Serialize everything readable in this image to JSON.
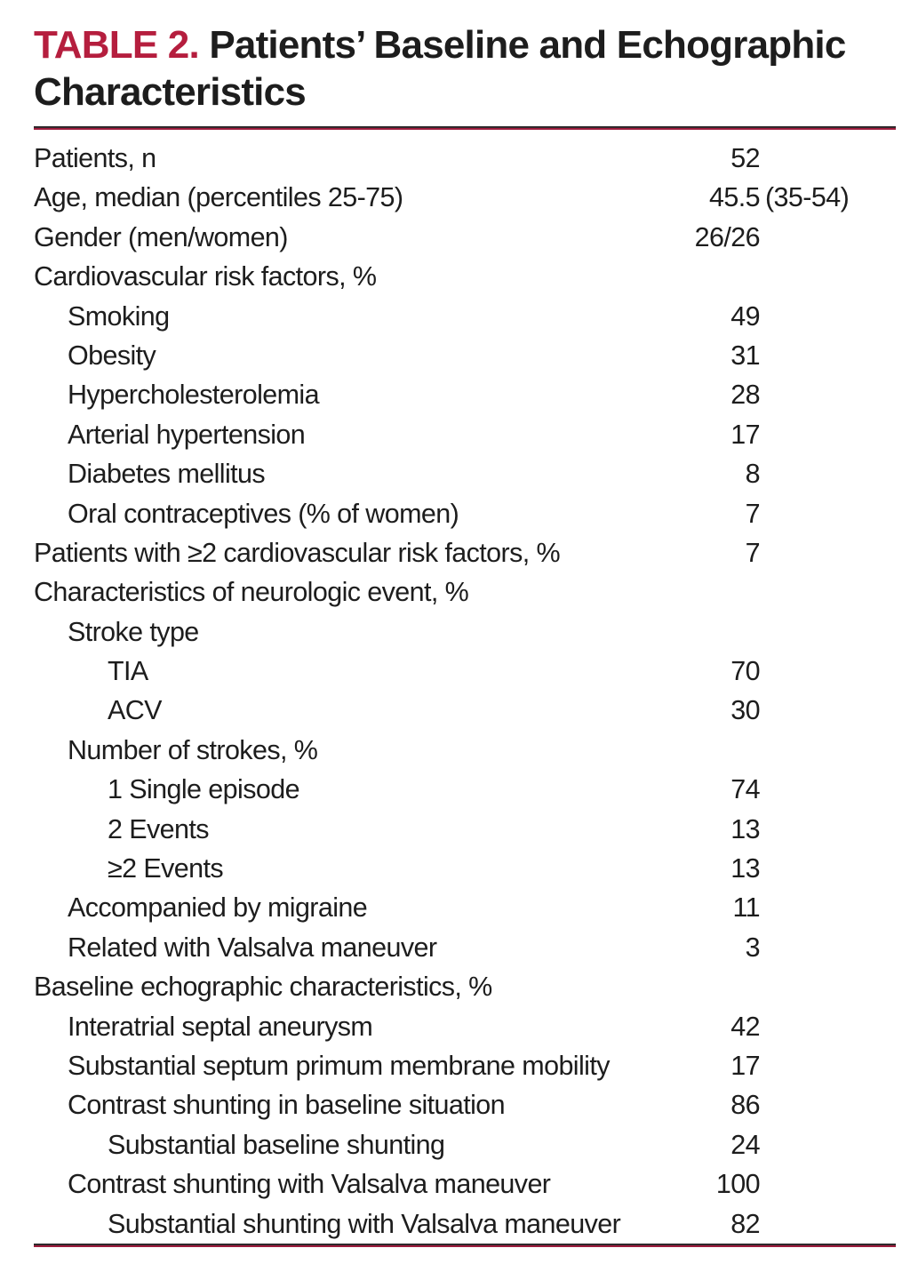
{
  "title": {
    "label": "TABLE 2.",
    "line1": "Patients’ Baseline and Echographic",
    "line2": "Characteristics"
  },
  "colors": {
    "accent": "#b51e3e",
    "rule_dark": "#2e2a2c",
    "rule_red": "#9c1c3c",
    "text": "#1d1d1d"
  },
  "table": {
    "rows": [
      {
        "label": "Patients, n",
        "value": "52",
        "suffix": "",
        "indent": 0
      },
      {
        "label": "Age, median (percentiles 25-75)",
        "value": "45.5",
        "suffix": "(35-54)",
        "indent": 0
      },
      {
        "label": "Gender (men/women)",
        "value": "26/26",
        "suffix": "",
        "indent": 0
      },
      {
        "label": "Cardiovascular risk factors, %",
        "value": "",
        "suffix": "",
        "indent": 0
      },
      {
        "label": "Smoking",
        "value": "49",
        "suffix": "",
        "indent": 1
      },
      {
        "label": "Obesity",
        "value": "31",
        "suffix": "",
        "indent": 1
      },
      {
        "label": "Hypercholesterolemia",
        "value": "28",
        "suffix": "",
        "indent": 1
      },
      {
        "label": "Arterial hypertension",
        "value": "17",
        "suffix": "",
        "indent": 1
      },
      {
        "label": "Diabetes mellitus",
        "value": "8",
        "suffix": "",
        "indent": 1
      },
      {
        "label": "Oral contraceptives (% of women)",
        "value": "7",
        "suffix": "",
        "indent": 1
      },
      {
        "label": "Patients with ≥2 cardiovascular risk factors, %",
        "value": "7",
        "suffix": "",
        "indent": 0
      },
      {
        "label": "Characteristics of neurologic event, %",
        "value": "",
        "suffix": "",
        "indent": 0
      },
      {
        "label": "Stroke type",
        "value": "",
        "suffix": "",
        "indent": 1
      },
      {
        "label": "TIA",
        "value": "70",
        "suffix": "",
        "indent": 2
      },
      {
        "label": "ACV",
        "value": "30",
        "suffix": "",
        "indent": 2
      },
      {
        "label": "Number of strokes, %",
        "value": "",
        "suffix": "",
        "indent": 1
      },
      {
        "label": "1 Single episode",
        "value": "74",
        "suffix": "",
        "indent": 2
      },
      {
        "label": "2 Events",
        "value": "13",
        "suffix": "",
        "indent": 2
      },
      {
        "label": "≥2 Events",
        "value": "13",
        "suffix": "",
        "indent": 2
      },
      {
        "label": "Accompanied by migraine",
        "value": "11",
        "suffix": "",
        "indent": 1
      },
      {
        "label": "Related with Valsalva maneuver",
        "value": "3",
        "suffix": "",
        "indent": 1
      },
      {
        "label": "Baseline echographic characteristics, %",
        "value": "",
        "suffix": "",
        "indent": 0
      },
      {
        "label": "Interatrial septal aneurysm",
        "value": "42",
        "suffix": "",
        "indent": 1
      },
      {
        "label": "Substantial septum primum membrane mobility",
        "value": "17",
        "suffix": "",
        "indent": 1
      },
      {
        "label": "Contrast shunting in baseline situation",
        "value": "86",
        "suffix": "",
        "indent": 1
      },
      {
        "label": "Substantial baseline shunting",
        "value": "24",
        "suffix": "",
        "indent": 2
      },
      {
        "label": "Contrast shunting with Valsalva maneuver",
        "value": "100",
        "suffix": "",
        "indent": 1
      },
      {
        "label": "Substantial shunting with Valsalva maneuver",
        "value": "82",
        "suffix": "",
        "indent": 2
      }
    ]
  }
}
